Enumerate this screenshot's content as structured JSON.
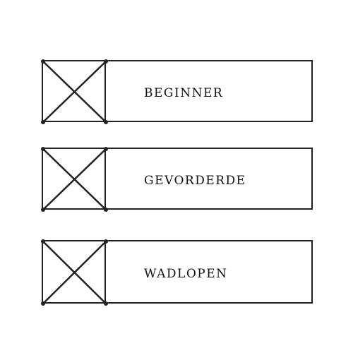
{
  "options": [
    {
      "label": "BEGINNER",
      "state": "crossed"
    },
    {
      "label": "GEVORDERDE",
      "state": "crossed"
    },
    {
      "label": "WADLOPEN",
      "state": "crossed"
    }
  ],
  "colors": {
    "stroke": "#222222",
    "background": "#ffffff",
    "text": "#111111"
  }
}
